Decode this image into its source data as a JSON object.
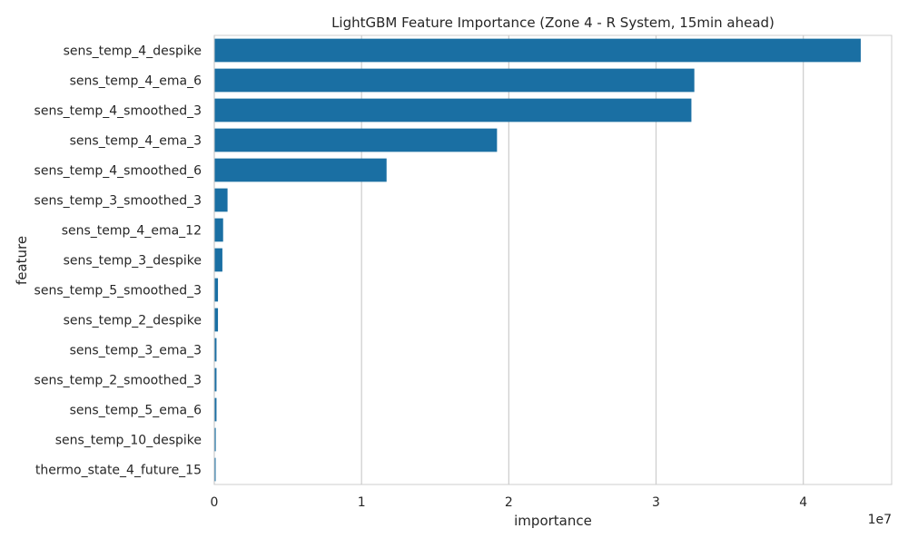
{
  "chart_data": {
    "type": "bar",
    "orientation": "horizontal",
    "title": "LightGBM Feature Importance (Zone 4 - R System, 15min ahead)",
    "xlabel": "importance",
    "ylabel": "feature",
    "x_scale_label": "1e7",
    "xlim": [
      0,
      4.6
    ],
    "x_ticks": [
      0,
      1,
      2,
      3,
      4
    ],
    "x_tick_labels": [
      "0",
      "1",
      "2",
      "3",
      "4"
    ],
    "grid": "vertical",
    "colors": {
      "bar": "#1a6fa3",
      "grid": "#cccccc",
      "spine": "#cccccc",
      "text": "#262626"
    },
    "categories": [
      "sens_temp_4_despike",
      "sens_temp_4_ema_6",
      "sens_temp_4_smoothed_3",
      "sens_temp_4_ema_3",
      "sens_temp_4_smoothed_6",
      "sens_temp_3_smoothed_3",
      "sens_temp_4_ema_12",
      "sens_temp_3_despike",
      "sens_temp_5_smoothed_3",
      "sens_temp_2_despike",
      "sens_temp_3_ema_3",
      "sens_temp_2_smoothed_3",
      "sens_temp_5_ema_6",
      "sens_temp_10_despike",
      "thermo_state_4_future_15"
    ],
    "values": [
      4.39,
      3.26,
      3.24,
      1.92,
      1.17,
      0.09,
      0.06,
      0.055,
      0.025,
      0.025,
      0.015,
      0.015,
      0.015,
      0.01,
      0.008
    ]
  }
}
